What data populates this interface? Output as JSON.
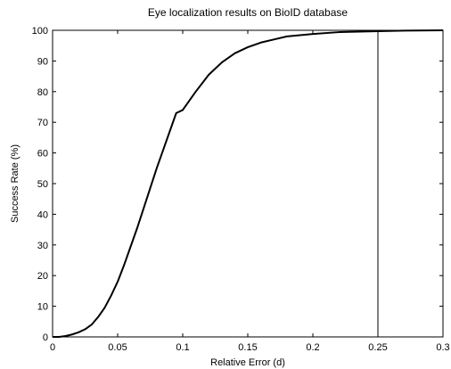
{
  "chart_data": {
    "type": "line",
    "title": "Eye localization results on BioID database",
    "xlabel": "Relative Error (d)",
    "ylabel": "Success Rate (%)",
    "xlim": [
      0,
      0.3
    ],
    "ylim": [
      0,
      100
    ],
    "grid": false,
    "x_ticks": [
      0,
      0.05,
      0.1,
      0.15,
      0.2,
      0.25,
      0.3
    ],
    "x_tick_labels": [
      "0",
      "0.05",
      "0.1",
      "0.15",
      "0.2",
      "0.25",
      "0.3"
    ],
    "y_ticks": [
      0,
      10,
      20,
      30,
      40,
      50,
      60,
      70,
      80,
      90,
      100
    ],
    "y_tick_labels": [
      "0",
      "10",
      "20",
      "30",
      "40",
      "50",
      "60",
      "70",
      "80",
      "90",
      "100"
    ],
    "vertical_line_x": 0.25,
    "series": [
      {
        "x": [
          0,
          0.005,
          0.01,
          0.015,
          0.02,
          0.025,
          0.03,
          0.035,
          0.04,
          0.045,
          0.05,
          0.055,
          0.06,
          0.065,
          0.07,
          0.075,
          0.08,
          0.085,
          0.09,
          0.095,
          0.1,
          0.11,
          0.12,
          0.13,
          0.14,
          0.15,
          0.16,
          0.17,
          0.18,
          0.2,
          0.22,
          0.25,
          0.27,
          0.3
        ],
        "values": [
          0,
          0,
          0.3,
          0.8,
          1.5,
          2.5,
          4,
          6.5,
          9.5,
          13.5,
          18,
          23.5,
          29.5,
          35.5,
          42,
          48.5,
          55,
          61,
          67,
          73,
          74,
          80,
          85.5,
          89.5,
          92.5,
          94.5,
          96,
          97,
          98,
          98.8,
          99.4,
          99.7,
          99.9,
          100
        ]
      }
    ]
  }
}
